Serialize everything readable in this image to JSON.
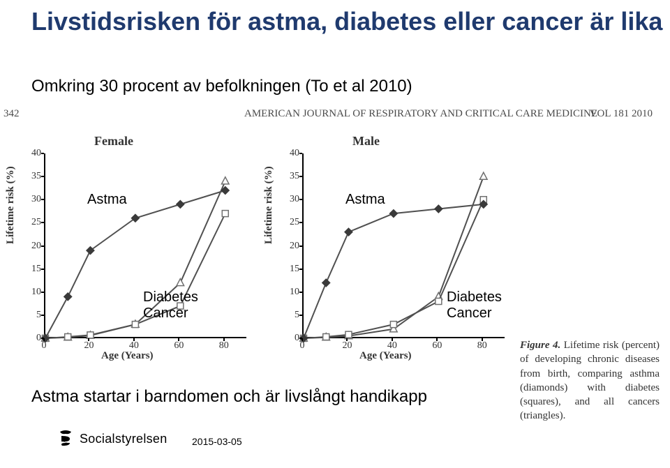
{
  "title": "Livstidsrisken för astma, diabetes eller cancer är lika",
  "subtitle": "Omkring 30 procent av befolkningen (To et al 2010)",
  "journal": {
    "page_number": "342",
    "name": "AMERICAN JOURNAL OF RESPIRATORY AND CRITICAL CARE MEDICINE",
    "vol": "VOL 181    2010"
  },
  "figure_caption": {
    "lead": "Figure 4.",
    "body": "Lifetime risk (percent) of developing chronic diseases from birth, comparing asthma (diamonds) with diabetes (squares), and all cancers (triangles)."
  },
  "charts": {
    "ylabel": "Lifetime risk (%)",
    "xlabel": "Age (Years)",
    "yticks": [
      0,
      5,
      10,
      15,
      20,
      25,
      30,
      35,
      40
    ],
    "ylim": [
      0,
      40
    ],
    "xticks": [
      0,
      20,
      40,
      60,
      80
    ],
    "xlim": [
      0,
      90
    ],
    "line_color": "#505050",
    "diamond_fill": "#3a3a3a",
    "square_stroke": "#707070",
    "triangle_stroke": "#707070",
    "stroke_width": 2,
    "marker_size": 9,
    "female": {
      "title": "Female",
      "asthma": {
        "x": [
          0,
          10,
          20,
          40,
          60,
          80
        ],
        "y": [
          0,
          9,
          19,
          26,
          29,
          32
        ]
      },
      "diabetes": {
        "x": [
          0,
          10,
          20,
          40,
          60,
          80
        ],
        "y": [
          0,
          0.3,
          0.7,
          3,
          7,
          27
        ]
      },
      "cancer": {
        "x": [
          0,
          10,
          20,
          40,
          60,
          80
        ],
        "y": [
          0,
          0.2,
          0.6,
          3,
          12,
          34
        ]
      },
      "annot": {
        "astma": "Astma",
        "diabetes": "Diabetes",
        "cancer": "Cancer"
      }
    },
    "male": {
      "title": "Male",
      "asthma": {
        "x": [
          0,
          10,
          20,
          40,
          60,
          80
        ],
        "y": [
          0,
          12,
          23,
          27,
          28,
          29
        ]
      },
      "diabetes": {
        "x": [
          0,
          10,
          20,
          40,
          60,
          80
        ],
        "y": [
          0,
          0.3,
          0.8,
          3,
          8,
          30
        ]
      },
      "cancer": {
        "x": [
          0,
          10,
          20,
          40,
          60,
          80
        ],
        "y": [
          0,
          0.2,
          0.5,
          2,
          9,
          35
        ]
      },
      "annot": {
        "astma": "Astma",
        "diabetes": "Diabetes",
        "cancer": "Cancer"
      }
    }
  },
  "footer_line": "Astma startar i barndomen och är livslångt handikapp",
  "logo_text": "Socialstyrelsen",
  "date": "2015-03-05"
}
